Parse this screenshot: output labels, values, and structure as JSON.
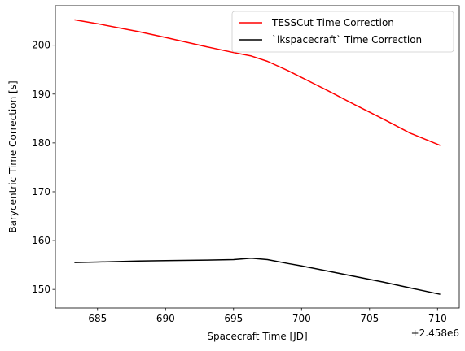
{
  "chart_data": {
    "type": "line",
    "title": "",
    "xlabel": "Spacecraft Time [JD]",
    "ylabel": "Barycentric Time Correction [s]",
    "x_offset_label": "+2.458e6",
    "xlim": [
      681.9,
      711.6
    ],
    "ylim": [
      146.2,
      208.1
    ],
    "xticks": [
      685,
      690,
      695,
      700,
      705,
      710
    ],
    "yticks": [
      150,
      160,
      170,
      180,
      190,
      200
    ],
    "grid": false,
    "legend_position": "upper right",
    "series": [
      {
        "name": "TESSCut Time Correction",
        "color": "#ff0000",
        "x": [
          683.3,
          685,
          688,
          690,
          693,
          695,
          696.3,
          697.5,
          699,
          700,
          702,
          704,
          706,
          708,
          710.2
        ],
        "y": [
          205.2,
          204.4,
          202.8,
          201.6,
          199.7,
          198.5,
          197.8,
          196.7,
          194.8,
          193.4,
          190.6,
          187.7,
          184.9,
          182.0,
          179.5
        ]
      },
      {
        "name": "`lkspacecraft` Time Correction",
        "color": "#000000",
        "x": [
          683.3,
          685,
          688,
          690,
          693,
          695,
          696.3,
          697.5,
          699,
          700,
          702,
          704,
          706,
          708,
          710.2
        ],
        "y": [
          155.5,
          155.6,
          155.8,
          155.9,
          156.0,
          156.1,
          156.4,
          156.1,
          155.3,
          154.8,
          153.7,
          152.6,
          151.5,
          150.3,
          149.0
        ]
      }
    ]
  }
}
